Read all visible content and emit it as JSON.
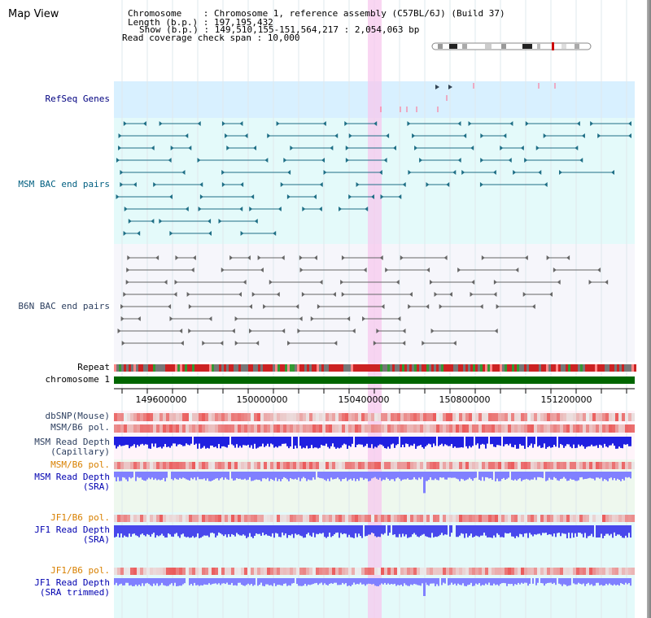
{
  "header": {
    "title": "Map View",
    "info_lines": [
      "Chromosome    : Chromosome 1, reference assembly (C57BL/6J) (Build 37)",
      "Length (b.p.) : 197,195,432",
      "Show (b.p.) : 149,510,155-151,564,217 : 2,054,063 bp",
      "Read coverage check span : 10,000"
    ]
  },
  "tracks": {
    "refseq": "RefSeq Genes",
    "msm_bac": "MSM BAC end pairs",
    "b6n_bac": "B6N BAC end pairs",
    "repeat": "Repeat",
    "chromosome": "chromosome 1",
    "dbsnp": "dbSNP(Mouse)",
    "msm_pol": "MSM/B6 pol.",
    "msm_depth_cap": "MSM Read Depth\n(Capillary)",
    "msm_pol_sra": "MSM/B6 pol.",
    "msm_depth_sra": "MSM Read Depth\n(SRA)",
    "jf1_pol": "JF1/B6 pol.",
    "jf1_depth": "JF1 Read Depth\n(SRA)",
    "jf1_pol_trim": "JF1/B6 pol.",
    "jf1_depth_trim": "JF1 Read Depth\n(SRA trimmed)"
  },
  "axis": {
    "ticks": [
      "149600000",
      "150000000",
      "150400000",
      "150800000",
      "151200000"
    ]
  },
  "colors": {
    "refseq_bg": "#d8f0ff",
    "msm_color": "#1f6f86",
    "b6n_color": "#555555",
    "highlight": "#f7c8ee",
    "chromosome": "#006600",
    "depth_blue": "#2020e0",
    "depth_light": "#8080ff"
  }
}
